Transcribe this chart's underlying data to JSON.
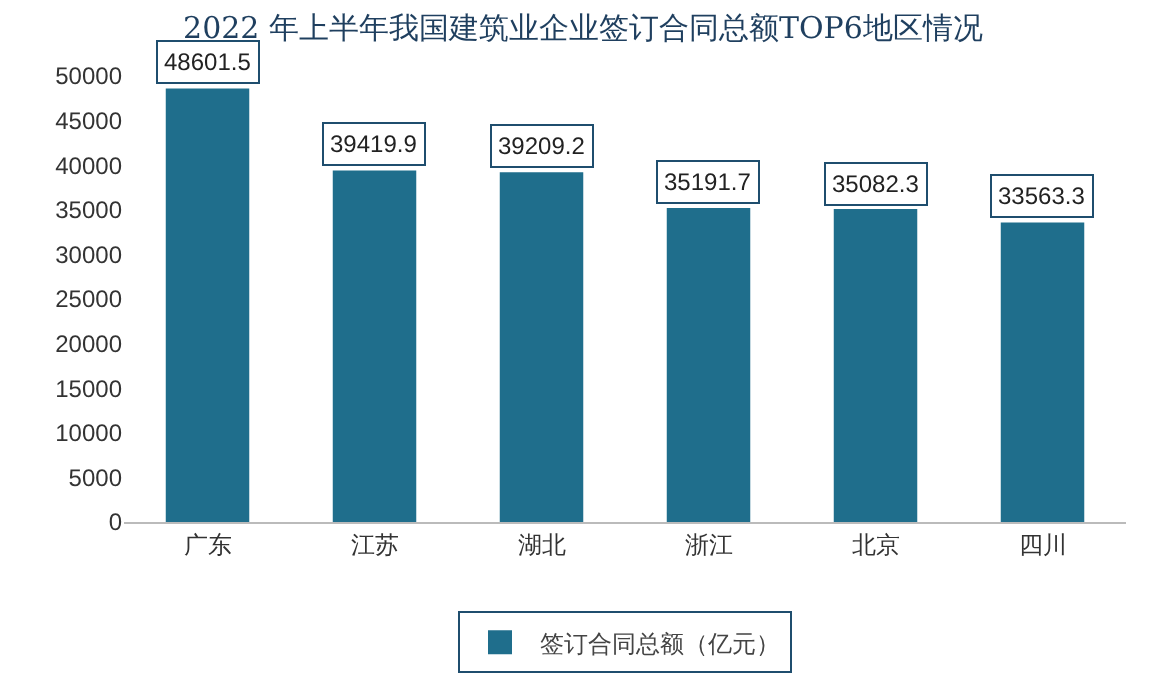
{
  "chart_data": {
    "type": "bar",
    "title": "2022 年上半年我国建筑业企业签订合同总额TOP6地区情况",
    "categories": [
      "广东",
      "江苏",
      "湖北",
      "浙江",
      "北京",
      "四川"
    ],
    "series": [
      {
        "name": "签订合同总额（亿元）",
        "color": "#1f6e8c",
        "values": [
          48601.5,
          39419.9,
          39209.2,
          35191.7,
          35082.3,
          33563.3
        ]
      }
    ],
    "ylim": [
      0,
      50000
    ],
    "yticks": [
      0,
      5000,
      10000,
      15000,
      20000,
      25000,
      30000,
      35000,
      40000,
      45000,
      50000
    ],
    "grid": false,
    "legend": "bottom",
    "data_labels": true
  }
}
